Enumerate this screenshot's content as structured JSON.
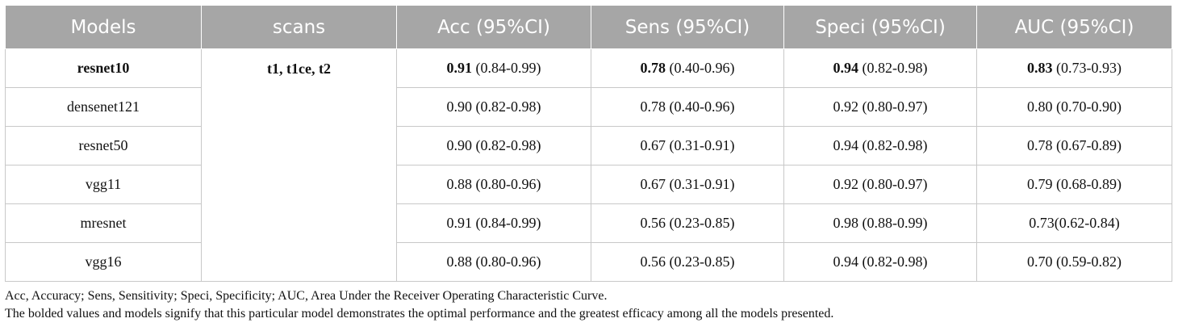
{
  "headers": [
    "Models",
    "scans",
    "Acc (95%CI)",
    "Sens (95%CI)",
    "Speci (95%CI)",
    "AUC (95%CI)"
  ],
  "scans": "t1, t1ce, t2",
  "rows": [
    {
      "model": "resnet10",
      "bold": true,
      "acc": {
        "v": "0.91",
        "ci": "(0.84-0.99)"
      },
      "sens": {
        "v": "0.78",
        "ci": "(0.40-0.96)"
      },
      "speci": {
        "v": "0.94",
        "ci": "(0.82-0.98)"
      },
      "auc": {
        "v": "0.83",
        "ci": "(0.73-0.93)"
      }
    },
    {
      "model": "densenet121",
      "bold": false,
      "acc": {
        "v": "0.90",
        "ci": "(0.82-0.98)"
      },
      "sens": {
        "v": "0.78",
        "ci": "(0.40-0.96)"
      },
      "speci": {
        "v": "0.92",
        "ci": "(0.80-0.97)"
      },
      "auc": {
        "v": "0.80",
        "ci": "(0.70-0.90)"
      }
    },
    {
      "model": "resnet50",
      "bold": false,
      "acc": {
        "v": "0.90",
        "ci": "(0.82-0.98)"
      },
      "sens": {
        "v": "0.67",
        "ci": "(0.31-0.91)"
      },
      "speci": {
        "v": "0.94",
        "ci": "(0.82-0.98)"
      },
      "auc": {
        "v": "0.78",
        "ci": "(0.67-0.89)"
      }
    },
    {
      "model": "vgg11",
      "bold": false,
      "acc": {
        "v": "0.88",
        "ci": "(0.80-0.96)"
      },
      "sens": {
        "v": "0.67",
        "ci": "(0.31-0.91)"
      },
      "speci": {
        "v": "0.92",
        "ci": "(0.80-0.97)"
      },
      "auc": {
        "v": "0.79",
        "ci": "(0.68-0.89)"
      }
    },
    {
      "model": "mresnet",
      "bold": false,
      "acc": {
        "v": "0.91",
        "ci": "(0.84-0.99)"
      },
      "sens": {
        "v": "0.56",
        "ci": "(0.23-0.85)"
      },
      "speci": {
        "v": "0.98",
        "ci": "(0.88-0.99)"
      },
      "auc": {
        "v": "0.73",
        "ci": "(0.62-0.84)",
        "sep": ""
      }
    },
    {
      "model": "vgg16",
      "bold": false,
      "acc": {
        "v": "0.88",
        "ci": "(0.80-0.96)"
      },
      "sens": {
        "v": "0.56",
        "ci": "(0.23-0.85)"
      },
      "speci": {
        "v": "0.94",
        "ci": "(0.82-0.98)"
      },
      "auc": {
        "v": "0.70",
        "ci": "(0.59-0.82)"
      }
    }
  ],
  "notes": {
    "abbreviations": "Acc, Accuracy; Sens, Sensitivity; Speci, Specificity; AUC, Area Under the Receiver Operating Characteristic Curve.",
    "bold_note": "The bolded values and models signify that this particular model demonstrates the optimal performance and the greatest efficacy among all the models presented."
  },
  "colors": {
    "header_bg": "#a6a6a6",
    "header_text": "#ffffff",
    "grid": "#c8c8c8"
  }
}
